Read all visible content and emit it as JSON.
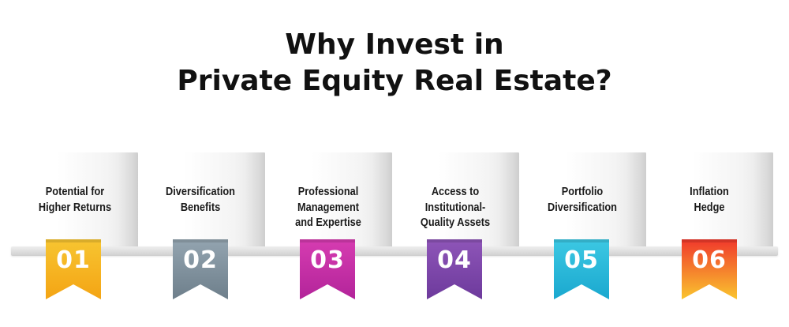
{
  "title": {
    "line1": "Why Invest in",
    "line2": "Private Equity Real Estate?"
  },
  "steps": [
    {
      "number": "01",
      "lines": [
        "Potential for",
        "Higher Returns"
      ],
      "color_top": "#f7c531",
      "color_bottom": "#f4a414"
    },
    {
      "number": "02",
      "lines": [
        "Diversification",
        "Benefits"
      ],
      "color_top": "#93a4b0",
      "color_bottom": "#6e7f8b"
    },
    {
      "number": "03",
      "lines": [
        "Professional",
        "Management",
        "and Expertise"
      ],
      "color_top": "#d63cb1",
      "color_bottom": "#b3249a"
    },
    {
      "number": "04",
      "lines": [
        "Access to",
        "Institutional-",
        "Quality Assets"
      ],
      "color_top": "#8e55b8",
      "color_bottom": "#6d3a9c"
    },
    {
      "number": "05",
      "lines": [
        "Portfolio",
        "Diversification"
      ],
      "color_top": "#3cc8e3",
      "color_bottom": "#1aa8cf"
    },
    {
      "number": "06",
      "lines": [
        "Inflation",
        "Hedge"
      ],
      "color_top": "#f0382c",
      "color_bottom": "#fac52e"
    }
  ]
}
